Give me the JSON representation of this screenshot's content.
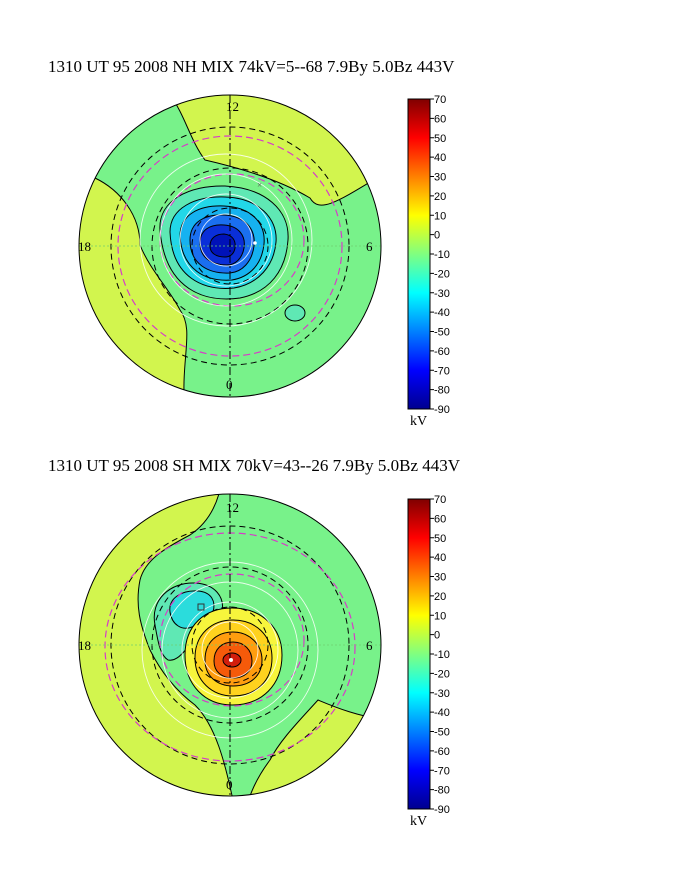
{
  "panels": [
    {
      "title": "1310 UT 95 2008 NH MIX 74kV=5--68  7.9By  5.0Bz 443V",
      "hemisphere": "NH",
      "mlt_labels": {
        "top": "12",
        "left": "18",
        "right": "6",
        "bottom": "0"
      },
      "colorbar_ticks": [
        "70",
        "60",
        "50",
        "40",
        "30",
        "20",
        "10",
        "0",
        "-10",
        "-20",
        "-30",
        "-40",
        "-50",
        "-60",
        "-70",
        "-80",
        "-90"
      ],
      "colorbar_unit": "kV"
    },
    {
      "title": "1310 UT 95 2008 SH MIX 70kV=43--26  7.9By  5.0Bz 443V",
      "hemisphere": "SH",
      "mlt_labels": {
        "top": "12",
        "left": "18",
        "right": "6",
        "bottom": "0"
      },
      "colorbar_ticks": [
        "70",
        "60",
        "50",
        "40",
        "30",
        "20",
        "10",
        "0",
        "-10",
        "-20",
        "-30",
        "-40",
        "-50",
        "-60",
        "-70",
        "-80",
        "-90"
      ],
      "colorbar_unit": "kV"
    }
  ],
  "chart_data": [
    {
      "type": "heatmap",
      "projection": "polar",
      "title": "1310 UT 95 2008 NH MIX 74kV=5--68  7.9By  5.0Bz 443V",
      "colorbar": {
        "min": -90,
        "max": 70,
        "step": 10,
        "unit": "kV"
      },
      "potential_extremes_kV": {
        "max": 5,
        "min": -68
      },
      "imf": {
        "By": 7.9,
        "Bz": 5.0,
        "V": 443
      }
    },
    {
      "type": "heatmap",
      "projection": "polar",
      "title": "1310 UT 95 2008 SH MIX 70kV=43--26  7.9By  5.0Bz 443V",
      "colorbar": {
        "min": -90,
        "max": 70,
        "step": 10,
        "unit": "kV"
      },
      "potential_extremes_kV": {
        "max": 43,
        "min": -26
      },
      "imf": {
        "By": 7.9,
        "Bz": 5.0,
        "V": 443
      }
    }
  ]
}
